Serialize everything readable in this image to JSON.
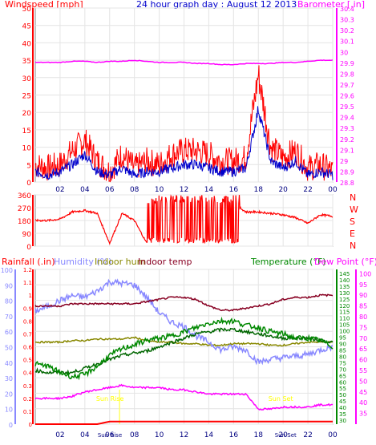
{
  "page": {
    "title": "24 hour graph day : August 12 2013"
  },
  "chart_data": [
    {
      "id": "wind-baro",
      "type": "line",
      "title": "24 hour graph day : August 12 2013",
      "x_ticks": [
        "02",
        "04",
        "06",
        "08",
        "10",
        "12",
        "14",
        "16",
        "18",
        "20",
        "22",
        "00"
      ],
      "left_axis": {
        "label": "Windspeed [mph]",
        "ticks": [
          "0",
          "5",
          "10",
          "15",
          "20",
          "25",
          "30",
          "35",
          "40",
          "45",
          "50"
        ],
        "ylim": [
          0,
          50
        ],
        "color": "#ff0000"
      },
      "right_axis": {
        "label": "Barometer [.in]",
        "ticks": [
          "28.8",
          "28.9",
          "29",
          "29.1",
          "29.2",
          "29.3",
          "29.4",
          "29.5",
          "29.6",
          "29.7",
          "29.8",
          "29.9",
          "30",
          "30.1",
          "30.2",
          "30.3",
          "30.4"
        ],
        "ylim": [
          28.8,
          30.4
        ],
        "color": "#ff00ff"
      },
      "x_hours": [
        0,
        1,
        2,
        3,
        4,
        5,
        6,
        7,
        8,
        9,
        10,
        11,
        12,
        13,
        14,
        15,
        16,
        17,
        18,
        19,
        20,
        21,
        22,
        23,
        24
      ],
      "series": [
        {
          "role": "gust",
          "color": "#ff0000",
          "values": [
            5,
            4,
            5,
            9,
            12,
            6,
            3,
            8,
            4,
            6,
            5,
            8,
            9,
            9,
            8,
            6,
            6,
            7,
            31,
            10,
            7,
            9,
            4,
            5,
            3
          ]
        },
        {
          "role": "average",
          "color": "#0000cc",
          "values": [
            3,
            2,
            3,
            5,
            8,
            3,
            2,
            4,
            2,
            3,
            3,
            4,
            5,
            5,
            4,
            3,
            3,
            4,
            21,
            6,
            4,
            6,
            2,
            3,
            2
          ]
        },
        {
          "role": "barometer",
          "color": "#ff00ff",
          "values": [
            29.9,
            29.9,
            29.9,
            29.91,
            29.91,
            29.9,
            29.91,
            29.91,
            29.92,
            29.91,
            29.9,
            29.9,
            29.9,
            29.89,
            29.89,
            29.88,
            29.88,
            29.89,
            29.89,
            29.89,
            29.9,
            29.9,
            29.91,
            29.92,
            29.92
          ]
        }
      ]
    },
    {
      "id": "wind-dir",
      "type": "line",
      "x_ticks": [],
      "left_axis": {
        "ticks": [
          "0",
          "90",
          "180",
          "270",
          "360"
        ],
        "ylim": [
          0,
          360
        ],
        "color": "#ff0000"
      },
      "right_axis": {
        "ticks": [
          "N",
          "W",
          "S",
          "E",
          "N"
        ],
        "color": "#ff0000"
      },
      "x_hours": [
        0,
        1,
        2,
        3,
        4,
        5,
        6,
        7,
        8,
        9,
        10,
        11,
        12,
        13,
        14,
        15,
        16,
        17,
        18,
        19,
        20,
        21,
        22,
        23,
        24
      ],
      "series": [
        {
          "role": "direction",
          "color": "#ff0000",
          "values": [
            180,
            180,
            190,
            240,
            250,
            230,
            20,
            230,
            180,
            20,
            320,
            20,
            300,
            20,
            300,
            20,
            300,
            240,
            240,
            230,
            220,
            200,
            160,
            220,
            210
          ]
        }
      ]
    },
    {
      "id": "rain-humidity-temp",
      "type": "line",
      "x_ticks": [
        "02",
        "04",
        "06",
        "08",
        "10",
        "12",
        "14",
        "16",
        "18",
        "20",
        "22",
        "00"
      ],
      "headers": {
        "rainfall": "Rainfall (.in)",
        "humidity": "Humidity (%)",
        "indoor_hum": "Indoor hum",
        "indoor_temp": "Indoor temp",
        "temperature": "Temperature (°F)",
        "dew_point": "Dew Point (°F)"
      },
      "rain_axis": {
        "ticks": [
          "0",
          "0.1",
          "0.2",
          "0.3",
          "0.4",
          "0.5",
          "0.6",
          "0.7",
          "0.8",
          "0.9",
          "1",
          "1.1",
          "1.2"
        ],
        "ylim": [
          0,
          1.2
        ],
        "color": "#ff0000"
      },
      "humidity_axis": {
        "ticks": [
          "0",
          "10",
          "20",
          "30",
          "40",
          "50",
          "60",
          "70",
          "80",
          "90",
          "100"
        ],
        "ylim": [
          0,
          100
        ],
        "color": "#8888ff"
      },
      "temp_axis_outer": {
        "ticks": [
          "30",
          "35",
          "40",
          "45",
          "50",
          "55",
          "60",
          "65",
          "70",
          "75",
          "80",
          "85",
          "90",
          "95",
          "100",
          "105",
          "110",
          "115",
          "120",
          "125",
          "130",
          "135",
          "140",
          "145"
        ],
        "color": "#00aa00"
      },
      "temp_axis_inner": {
        "ticks": [
          "35",
          "40",
          "45",
          "50",
          "55",
          "60",
          "65",
          "70",
          "75",
          "80",
          "85",
          "90",
          "95",
          "100"
        ],
        "ylim": [
          30,
          102
        ],
        "color": "#ff00ff"
      },
      "annotations": [
        {
          "text": "Sun Rise",
          "hour": 6.2
        },
        {
          "text": "Sun Set",
          "hour": 20.1
        }
      ],
      "markers": {
        "sun_high_hour": 6.8,
        "sun_low_hour": 20.8
      },
      "x_hours": [
        0,
        1,
        2,
        3,
        4,
        5,
        6,
        7,
        8,
        9,
        10,
        11,
        12,
        13,
        14,
        15,
        16,
        17,
        18,
        19,
        20,
        21,
        22,
        23,
        24
      ],
      "series": [
        {
          "role": "rainfall",
          "color": "#ff0000",
          "unit": "in",
          "values": [
            0,
            0,
            0,
            0,
            0,
            0,
            0.02,
            0.02,
            0.02,
            0.02,
            0.02,
            0.02,
            0.02,
            0.02,
            0.02,
            0.02,
            0.02,
            0.02,
            0.02,
            0.02,
            0.02,
            0.02,
            0.02,
            0.02,
            0.02
          ]
        },
        {
          "role": "humidity",
          "color": "#8888ff",
          "unit": "%",
          "values": [
            73,
            76,
            80,
            83,
            82,
            86,
            92,
            91,
            90,
            82,
            72,
            66,
            63,
            57,
            53,
            48,
            50,
            48,
            40,
            42,
            43,
            44,
            45,
            48,
            50
          ]
        },
        {
          "role": "indoor_hum",
          "color": "#888800",
          "unit": "%",
          "values": [
            53,
            53,
            53,
            54,
            54,
            55,
            55,
            55,
            56,
            54,
            53,
            53,
            52,
            52,
            51,
            51,
            52,
            52,
            52,
            51,
            51,
            52,
            53,
            53,
            53
          ]
        },
        {
          "role": "indoor_temp",
          "color": "#880022",
          "unit": "F",
          "values": [
            85,
            85,
            85,
            86,
            86,
            86,
            86,
            86,
            86,
            87,
            88,
            89,
            89,
            88,
            85,
            83,
            83,
            84,
            85,
            86,
            88,
            89,
            89,
            90,
            90
          ]
        },
        {
          "role": "temperature",
          "color": "#008800",
          "unit": "F",
          "values": [
            58,
            57,
            54,
            52,
            53,
            57,
            62,
            65,
            67,
            69,
            70,
            71,
            73,
            75,
            77,
            78,
            78,
            76,
            75,
            73,
            72,
            70,
            70,
            69,
            66
          ]
        },
        {
          "role": "dew_point",
          "color": "#006600",
          "unit": "F",
          "values": [
            55,
            54,
            54,
            54,
            56,
            58,
            60,
            62,
            63,
            64,
            66,
            68,
            70,
            72,
            73,
            74,
            74,
            73,
            72,
            71,
            70,
            70,
            70,
            69,
            68
          ]
        },
        {
          "role": "inner_temp",
          "color": "#ff00ff",
          "unit": "F",
          "values": [
            42,
            42,
            42,
            43,
            45,
            46,
            47,
            48,
            47,
            47,
            47,
            46,
            46,
            45,
            44,
            44,
            44,
            44,
            37,
            37,
            38,
            38,
            38,
            39,
            39
          ]
        }
      ]
    }
  ]
}
